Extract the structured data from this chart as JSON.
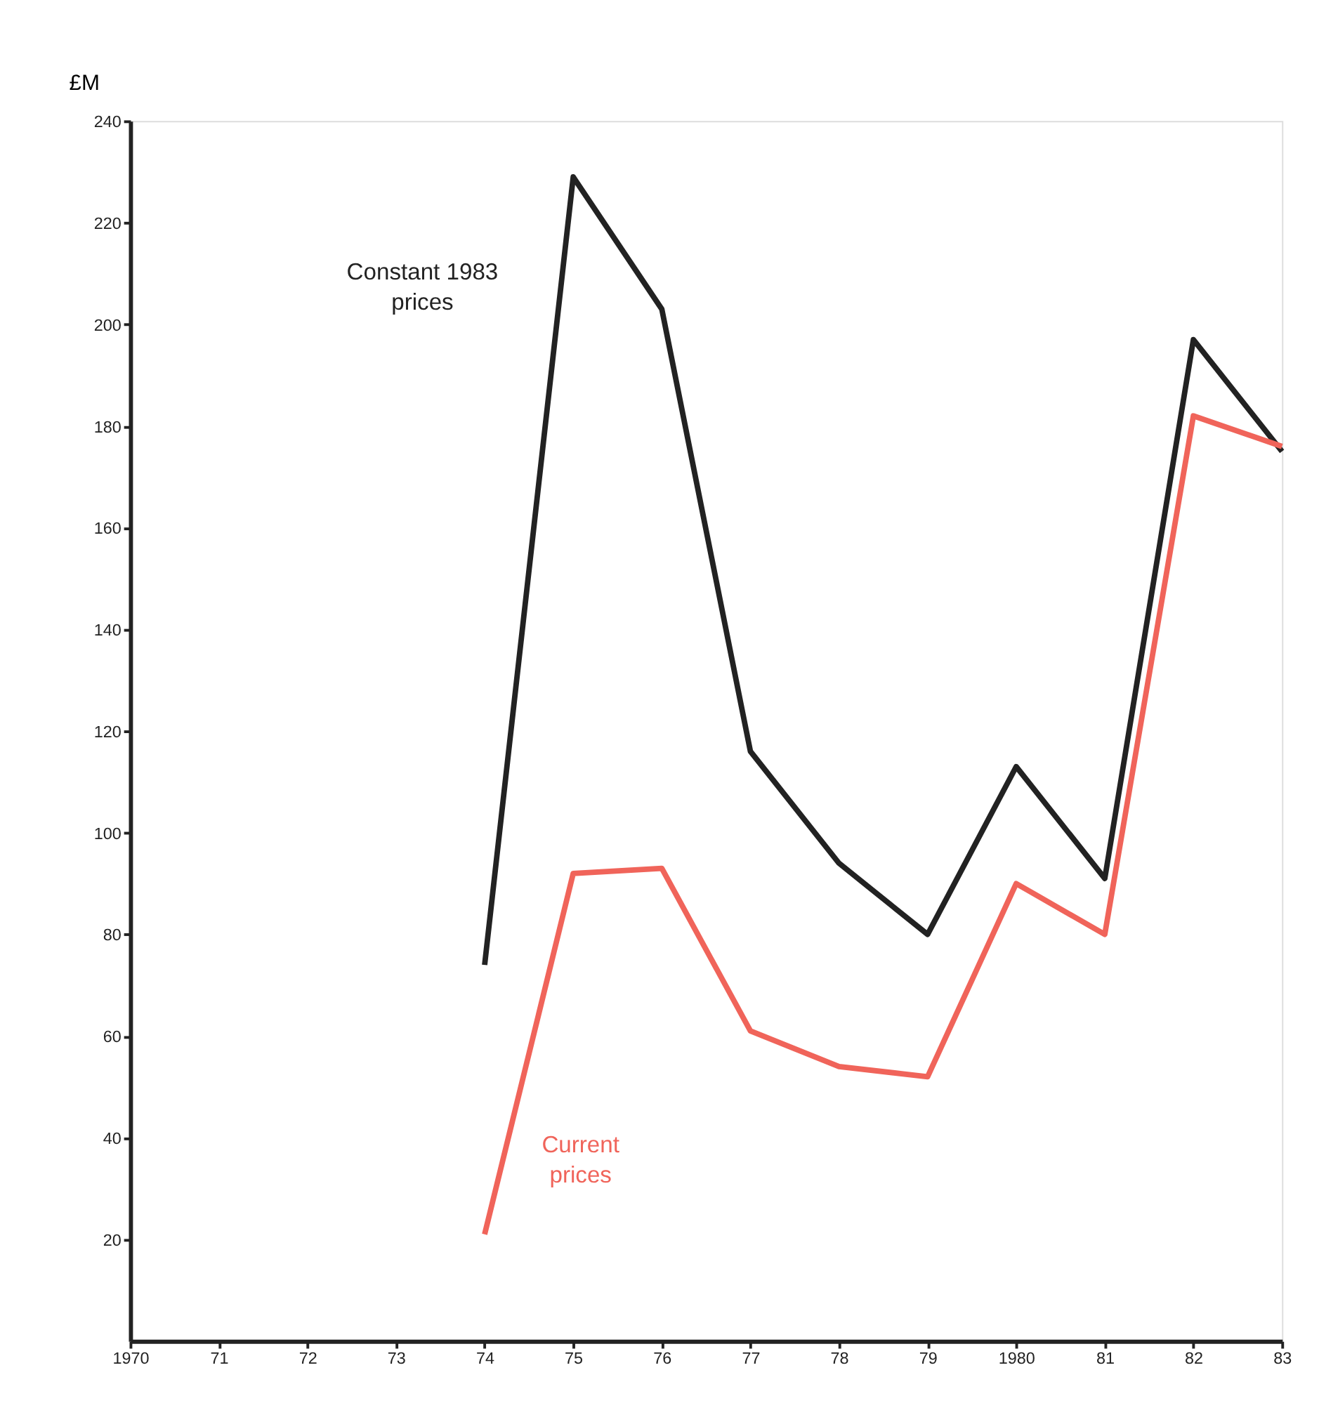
{
  "chart_data": {
    "type": "line",
    "ylabel": "£M",
    "x": [
      1974,
      1975,
      1976,
      1977,
      1978,
      1979,
      1980,
      1981,
      1982,
      1983
    ],
    "series": [
      {
        "name": "Constant 1983 prices",
        "color": "#222222",
        "values": [
          74,
          229,
          203,
          116,
          94,
          80,
          113,
          91,
          197,
          175
        ]
      },
      {
        "name": "Current prices",
        "color": "#f0645a",
        "values": [
          21,
          92,
          93,
          61,
          54,
          52,
          90,
          80,
          182,
          176
        ]
      }
    ],
    "xlim": [
      1970,
      1983
    ],
    "xticks": [
      1970,
      {
        "value": 1971,
        "label": "71"
      },
      {
        "value": 1972,
        "label": "72"
      },
      {
        "value": 1973,
        "label": "73"
      },
      {
        "value": 1974,
        "label": "74"
      },
      {
        "value": 1975,
        "label": "75"
      },
      {
        "value": 1976,
        "label": "76"
      },
      {
        "value": 1977,
        "label": "77"
      },
      {
        "value": 1978,
        "label": "78"
      },
      {
        "value": 1979,
        "label": "79"
      },
      1980,
      {
        "value": 1981,
        "label": "81"
      },
      {
        "value": 1982,
        "label": "82"
      },
      {
        "value": 1983,
        "label": "83"
      }
    ],
    "ylim": [
      0,
      240
    ],
    "yticks": [
      20,
      40,
      60,
      80,
      100,
      120,
      140,
      160,
      180,
      200,
      220,
      240
    ],
    "grid": false,
    "legend": false,
    "marker": "none",
    "line_style": "solid"
  }
}
